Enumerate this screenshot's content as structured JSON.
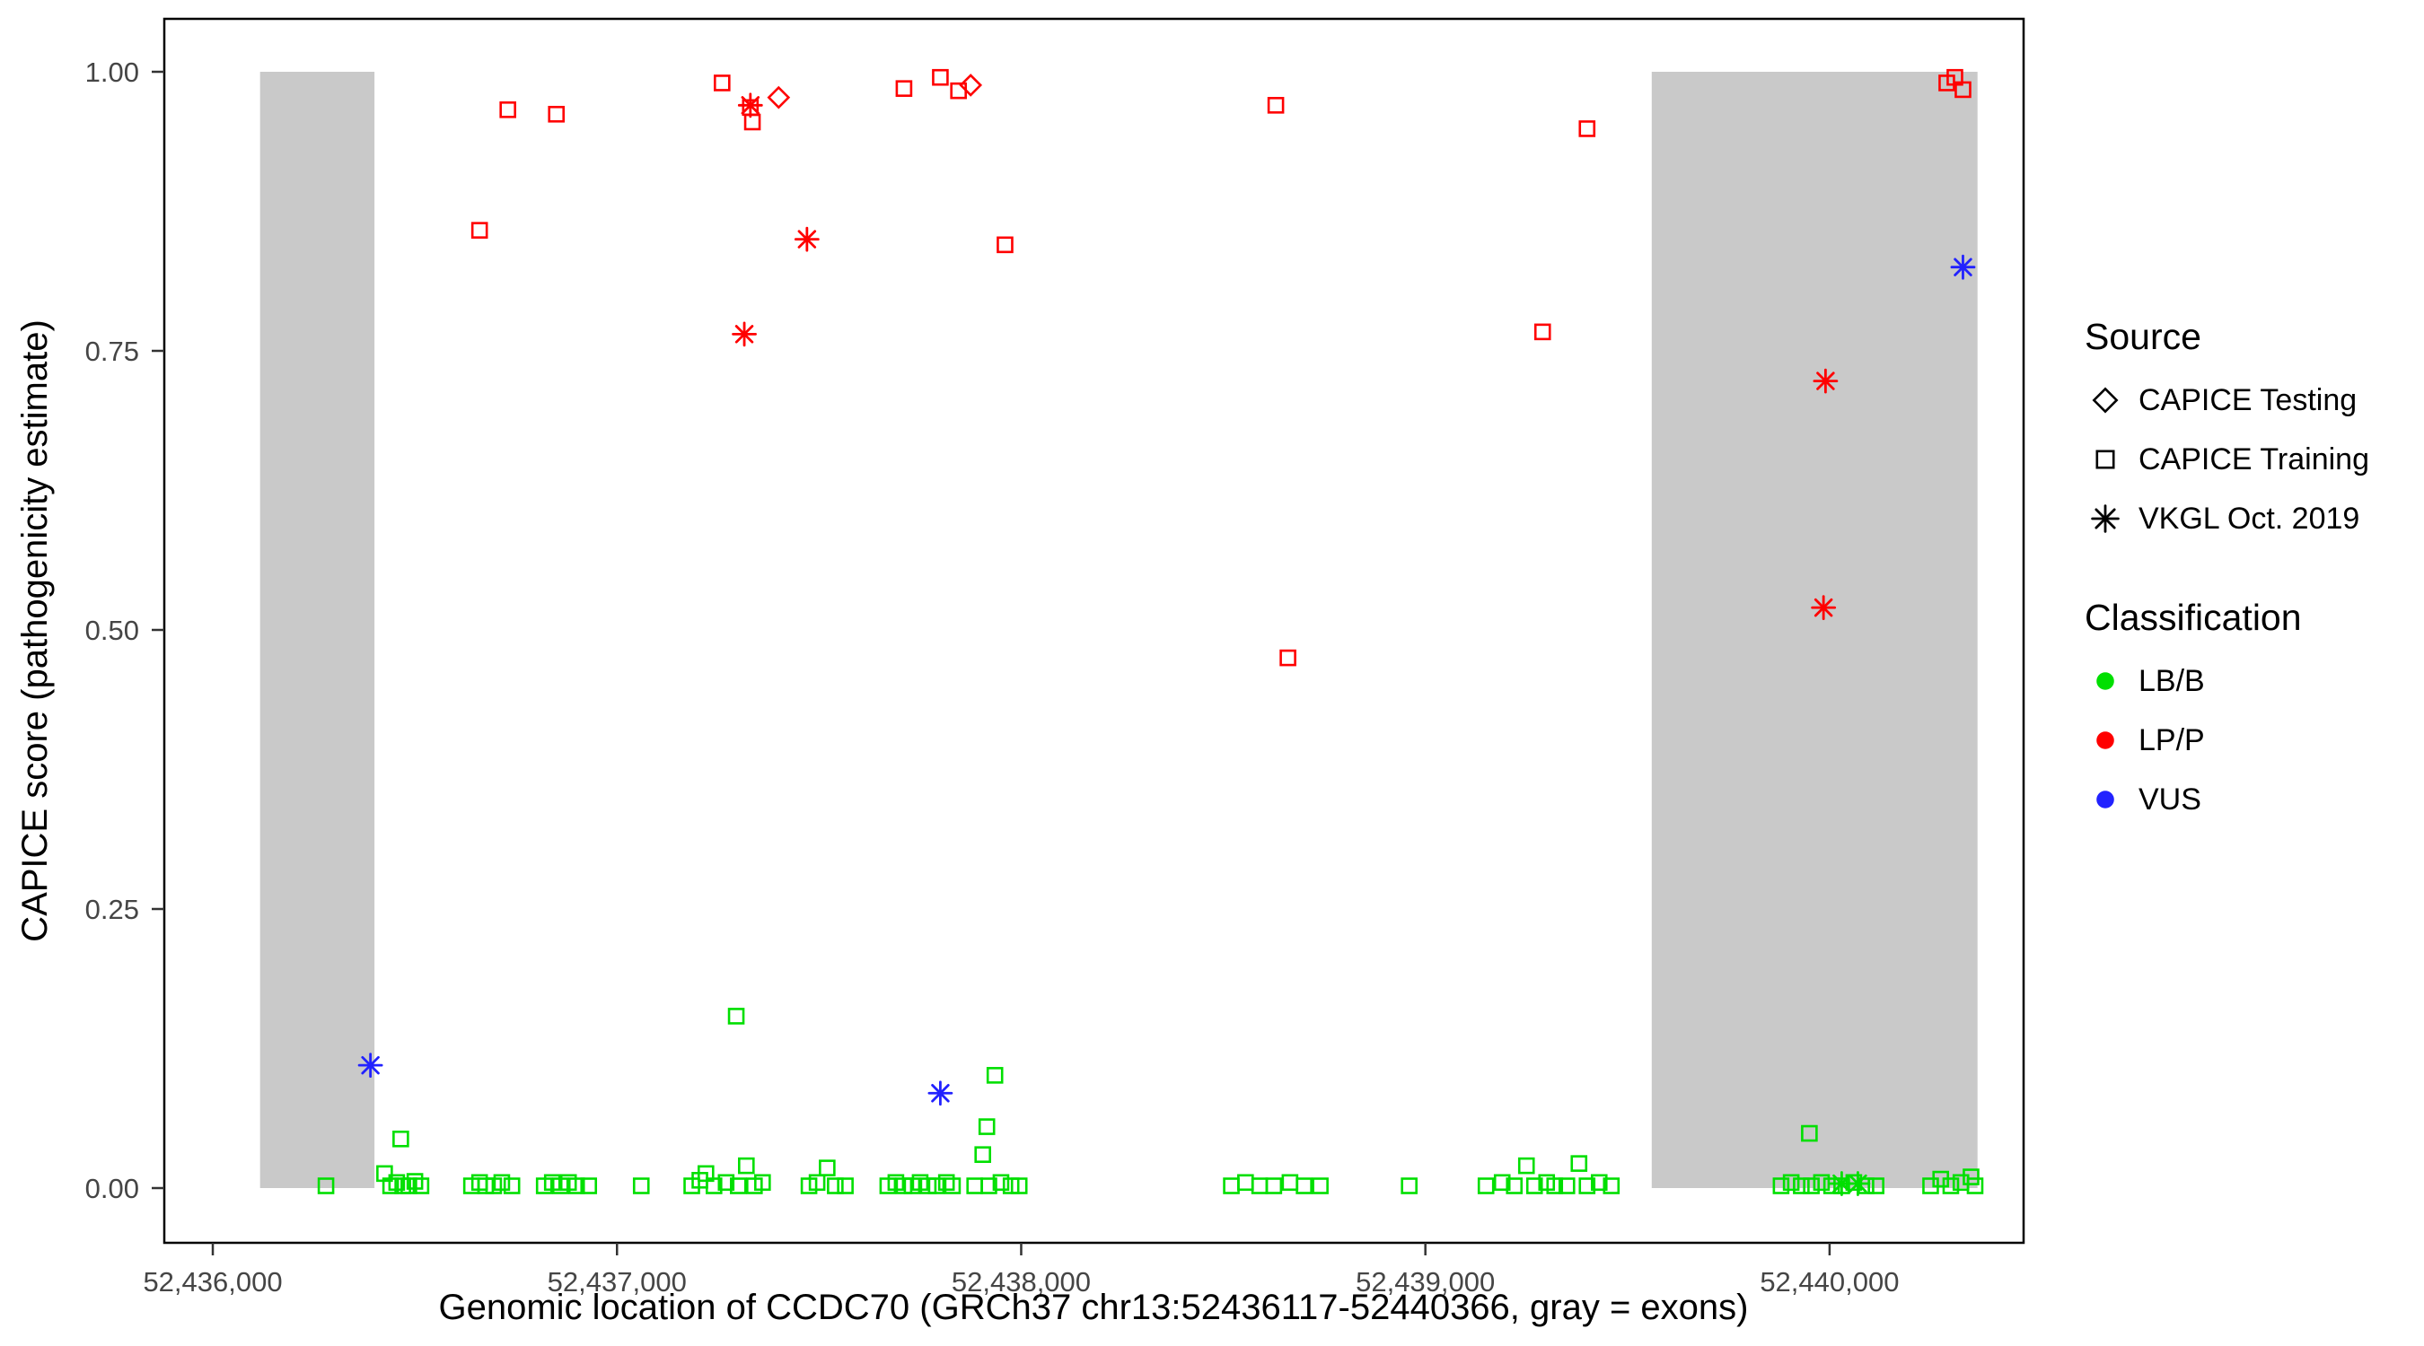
{
  "colors": {
    "lbb_green": "#00DF00",
    "lpp_red": "#FF0000",
    "vus_blue": "#2222FF",
    "exon_gray": "#C9C9C9",
    "axis_text": "#454545",
    "panel_border": "#000000"
  },
  "legend": {
    "source": {
      "title": "Source",
      "items": [
        {
          "label": "CAPICE Testing",
          "marker": "diamond",
          "color": "#000000"
        },
        {
          "label": "CAPICE Training",
          "marker": "square",
          "color": "#000000"
        },
        {
          "label": "VKGL Oct. 2019",
          "marker": "asterisk",
          "color": "#000000"
        }
      ]
    },
    "classification": {
      "title": "Classification",
      "items": [
        {
          "label": "LB/B",
          "marker": "circle",
          "color": "#00DF00"
        },
        {
          "label": "LP/P",
          "marker": "circle",
          "color": "#FF0000"
        },
        {
          "label": "VUS",
          "marker": "circle",
          "color": "#2222FF"
        }
      ]
    }
  },
  "chart_data": {
    "type": "scatter",
    "title": "",
    "xlabel": "Genomic location of CCDC70 (GRCh37 chr13:52436117-52440366, gray = exons)",
    "ylabel": "CAPICE score (pathogenicity estimate)",
    "xlim": [
      52435880,
      52440480
    ],
    "ylim": [
      0,
      1
    ],
    "grid": false,
    "legend_position": "right",
    "x_ticks": [
      {
        "value": 52436000,
        "label": "52,436,000"
      },
      {
        "value": 52437000,
        "label": "52,437,000"
      },
      {
        "value": 52438000,
        "label": "52,438,000"
      },
      {
        "value": 52439000,
        "label": "52,439,000"
      },
      {
        "value": 52440000,
        "label": "52,440,000"
      }
    ],
    "y_ticks": [
      {
        "value": 0,
        "label": "0.00"
      },
      {
        "value": 0.25,
        "label": "0.25"
      },
      {
        "value": 0.5,
        "label": "0.50"
      },
      {
        "value": 0.75,
        "label": "0.75"
      },
      {
        "value": 1,
        "label": "1.00"
      }
    ],
    "exon_regions": [
      [
        52436117,
        52436400
      ],
      [
        52439560,
        52440366
      ]
    ],
    "exon_color": "#C9C9C9",
    "series": [
      {
        "name": "CAPICE Training / LB/B",
        "source": "CAPICE Training",
        "classification": "LB/B",
        "marker": "square",
        "color": "#00DF00",
        "points": [
          [
            52436280,
            0.002
          ],
          [
            52436425,
            0.013
          ],
          [
            52436440,
            0.002
          ],
          [
            52436455,
            0.005
          ],
          [
            52436465,
            0.044
          ],
          [
            52436470,
            0.002
          ],
          [
            52436485,
            0.002
          ],
          [
            52436500,
            0.006
          ],
          [
            52436515,
            0.002
          ],
          [
            52436640,
            0.002
          ],
          [
            52436660,
            0.005
          ],
          [
            52436675,
            0.002
          ],
          [
            52436695,
            0.002
          ],
          [
            52436715,
            0.005
          ],
          [
            52436740,
            0.002
          ],
          [
            52436820,
            0.002
          ],
          [
            52436840,
            0.005
          ],
          [
            52436860,
            0.002
          ],
          [
            52436880,
            0.005
          ],
          [
            52436900,
            0.002
          ],
          [
            52436930,
            0.002
          ],
          [
            52437060,
            0.002
          ],
          [
            52437185,
            0.002
          ],
          [
            52437205,
            0.007
          ],
          [
            52437220,
            0.013
          ],
          [
            52437240,
            0.002
          ],
          [
            52437270,
            0.005
          ],
          [
            52437295,
            0.154
          ],
          [
            52437300,
            0.002
          ],
          [
            52437320,
            0.02
          ],
          [
            52437340,
            0.002
          ],
          [
            52437360,
            0.005
          ],
          [
            52437475,
            0.002
          ],
          [
            52437495,
            0.005
          ],
          [
            52437520,
            0.018
          ],
          [
            52437540,
            0.002
          ],
          [
            52437565,
            0.002
          ],
          [
            52437670,
            0.002
          ],
          [
            52437690,
            0.005
          ],
          [
            52437710,
            0.002
          ],
          [
            52437730,
            0.002
          ],
          [
            52437750,
            0.005
          ],
          [
            52437770,
            0.002
          ],
          [
            52437790,
            0.002
          ],
          [
            52437815,
            0.005
          ],
          [
            52437830,
            0.002
          ],
          [
            52437885,
            0.002
          ],
          [
            52437905,
            0.03
          ],
          [
            52437915,
            0.055
          ],
          [
            52437920,
            0.002
          ],
          [
            52437935,
            0.101
          ],
          [
            52437950,
            0.005
          ],
          [
            52437975,
            0.002
          ],
          [
            52437995,
            0.002
          ],
          [
            52438520,
            0.002
          ],
          [
            52438555,
            0.005
          ],
          [
            52438590,
            0.002
          ],
          [
            52438625,
            0.002
          ],
          [
            52438665,
            0.005
          ],
          [
            52438700,
            0.002
          ],
          [
            52438740,
            0.002
          ],
          [
            52438960,
            0.002
          ],
          [
            52439150,
            0.002
          ],
          [
            52439190,
            0.005
          ],
          [
            52439220,
            0.002
          ],
          [
            52439250,
            0.02
          ],
          [
            52439270,
            0.002
          ],
          [
            52439300,
            0.005
          ],
          [
            52439320,
            0.002
          ],
          [
            52439350,
            0.002
          ],
          [
            52439380,
            0.022
          ],
          [
            52439400,
            0.002
          ],
          [
            52439430,
            0.005
          ],
          [
            52439460,
            0.002
          ],
          [
            52439880,
            0.002
          ],
          [
            52439905,
            0.005
          ],
          [
            52439930,
            0.002
          ],
          [
            52439950,
            0.049
          ],
          [
            52439955,
            0.002
          ],
          [
            52439980,
            0.005
          ],
          [
            52440005,
            0.002
          ],
          [
            52440030,
            0.002
          ],
          [
            52440060,
            0.005
          ],
          [
            52440090,
            0.002
          ],
          [
            52440115,
            0.002
          ],
          [
            52440250,
            0.002
          ],
          [
            52440275,
            0.008
          ],
          [
            52440300,
            0.002
          ],
          [
            52440325,
            0.005
          ],
          [
            52440350,
            0.01
          ],
          [
            52440360,
            0.002
          ]
        ]
      },
      {
        "name": "CAPICE Training / LP/P",
        "source": "CAPICE Training",
        "classification": "LP/P",
        "marker": "square",
        "color": "#FF0000",
        "points": [
          [
            52436660,
            0.858
          ],
          [
            52436730,
            0.966
          ],
          [
            52436850,
            0.962
          ],
          [
            52437260,
            0.99
          ],
          [
            52437330,
            0.968
          ],
          [
            52437335,
            0.955
          ],
          [
            52437710,
            0.985
          ],
          [
            52437800,
            0.995
          ],
          [
            52437845,
            0.983
          ],
          [
            52437960,
            0.845
          ],
          [
            52438630,
            0.97
          ],
          [
            52438660,
            0.475
          ],
          [
            52439290,
            0.767
          ],
          [
            52439400,
            0.949
          ],
          [
            52440290,
            0.99
          ],
          [
            52440310,
            0.995
          ],
          [
            52440330,
            0.984
          ]
        ]
      },
      {
        "name": "CAPICE Testing / LP/P",
        "source": "CAPICE Testing",
        "classification": "LP/P",
        "marker": "diamond",
        "color": "#FF0000",
        "points": [
          [
            52437400,
            0.977
          ],
          [
            52437875,
            0.988
          ]
        ]
      },
      {
        "name": "VKGL Oct. 2019 / LB/B",
        "source": "VKGL Oct. 2019",
        "classification": "LB/B",
        "marker": "asterisk",
        "color": "#00DF00",
        "points": [
          [
            52440030,
            0.004
          ],
          [
            52440070,
            0.004
          ]
        ]
      },
      {
        "name": "VKGL Oct. 2019 / LP/P",
        "source": "VKGL Oct. 2019",
        "classification": "LP/P",
        "marker": "asterisk",
        "color": "#FF0000",
        "points": [
          [
            52437330,
            0.97
          ],
          [
            52437315,
            0.765
          ],
          [
            52437470,
            0.85
          ],
          [
            52439990,
            0.723
          ],
          [
            52439985,
            0.52
          ]
        ]
      },
      {
        "name": "VKGL Oct. 2019 / VUS",
        "source": "VKGL Oct. 2019",
        "classification": "VUS",
        "marker": "asterisk",
        "color": "#2222FF",
        "points": [
          [
            52436390,
            0.11
          ],
          [
            52437800,
            0.085
          ],
          [
            52440330,
            0.825
          ]
        ]
      }
    ]
  }
}
